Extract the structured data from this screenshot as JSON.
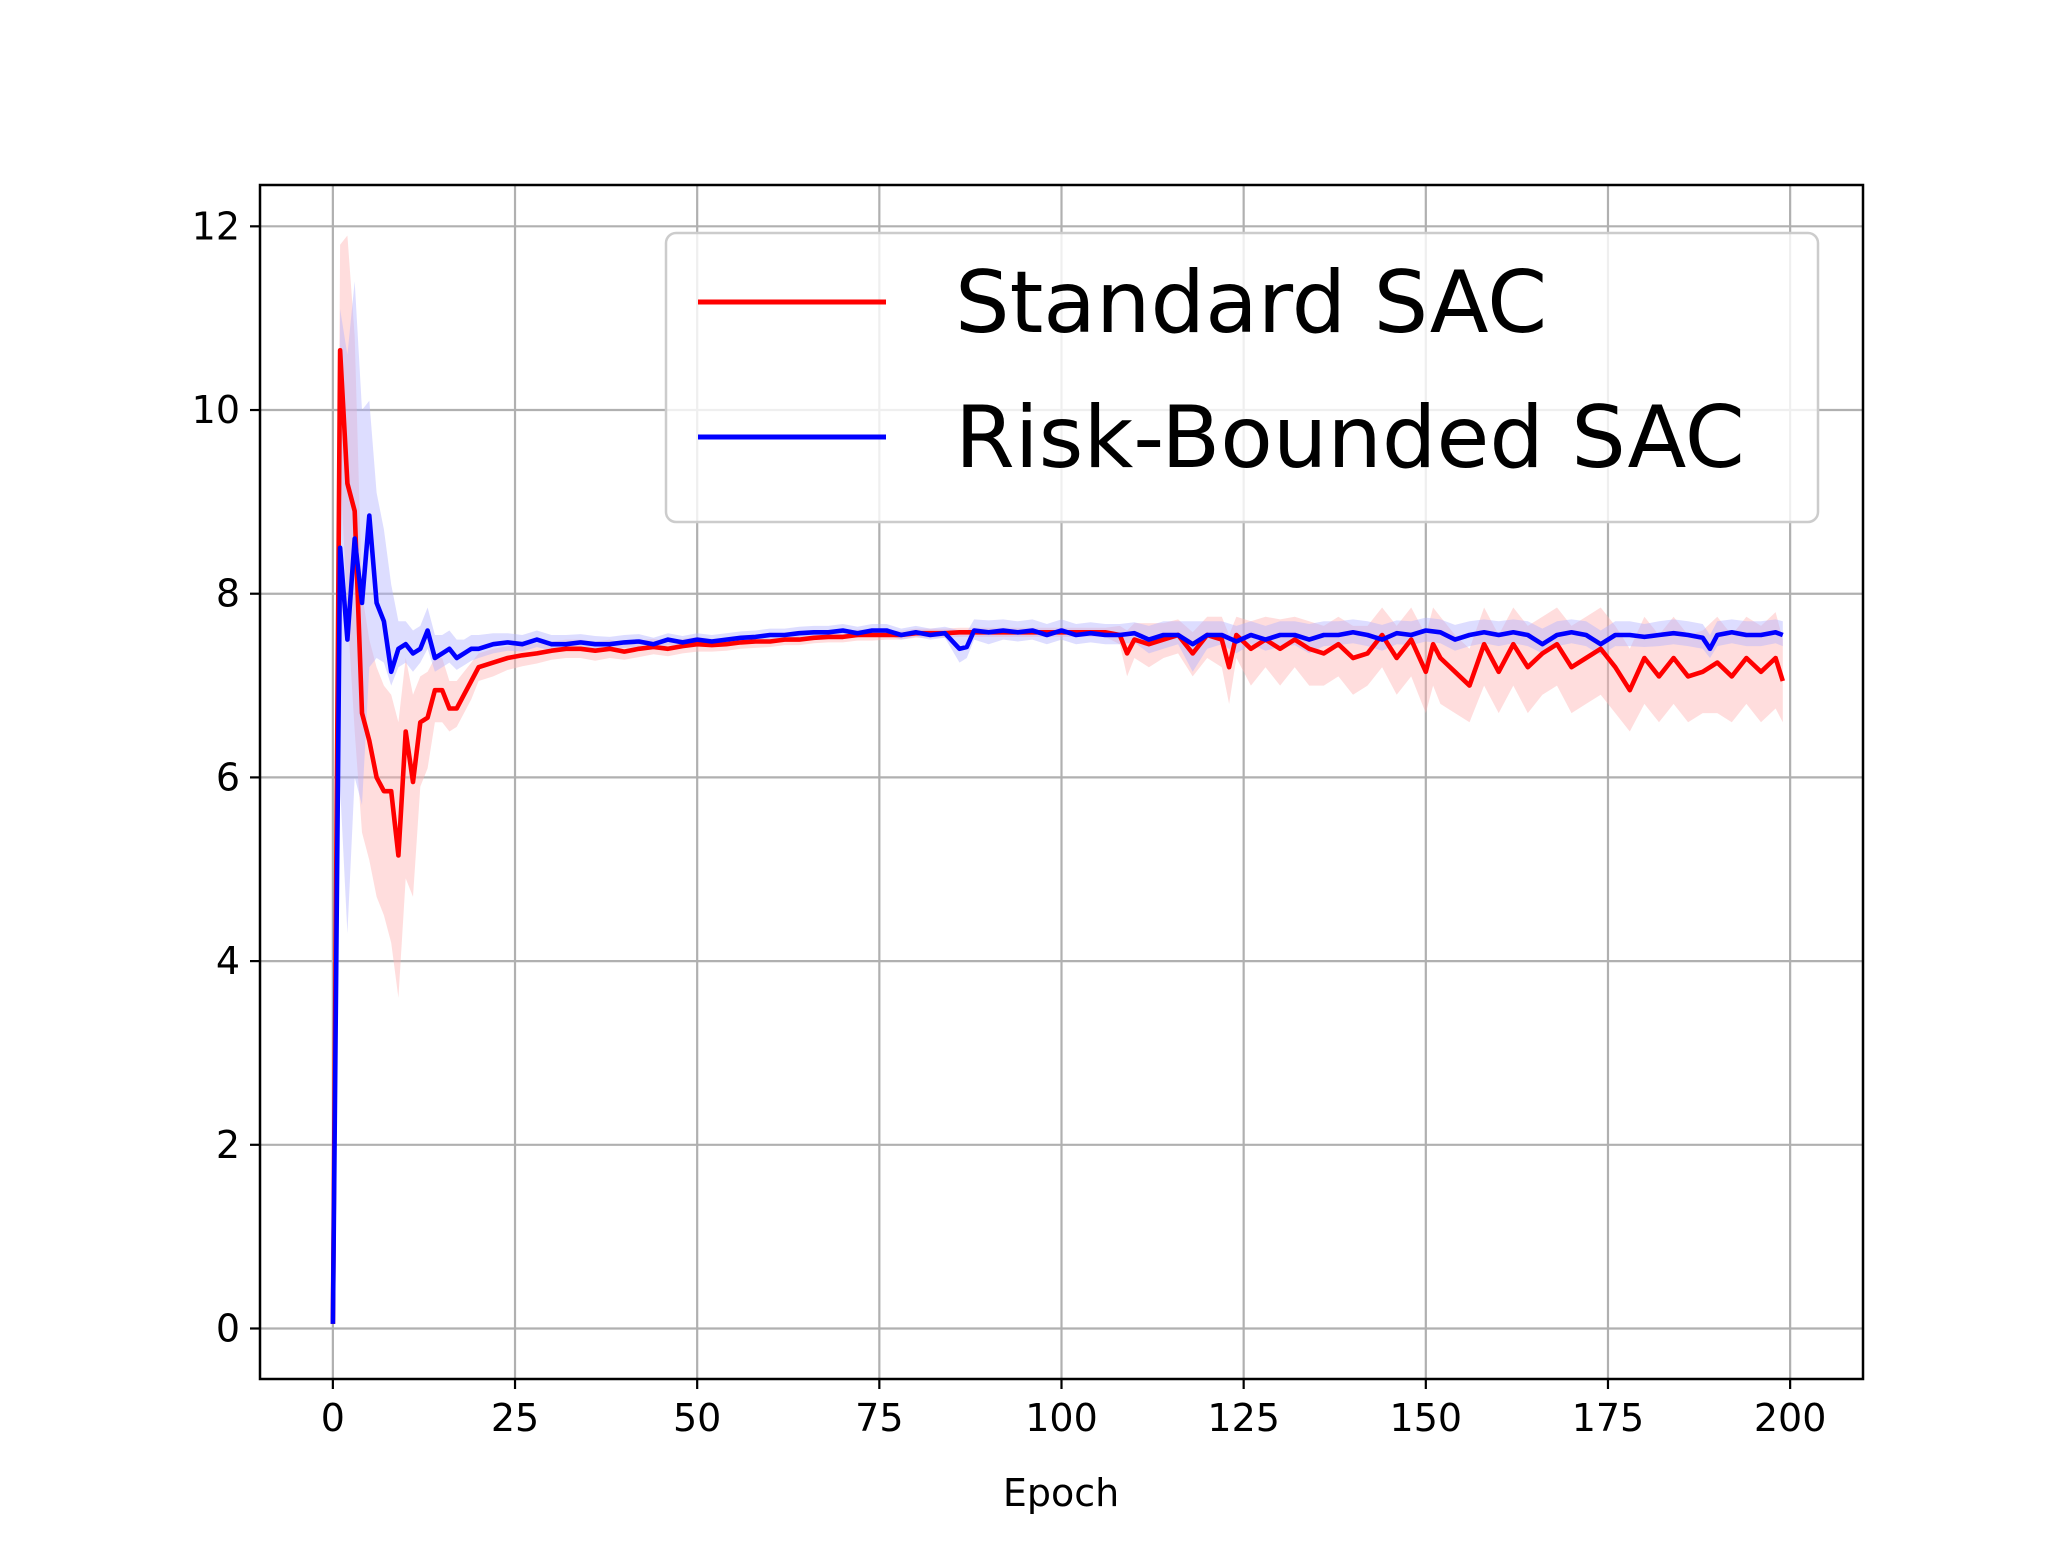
{
  "chart_data": {
    "type": "line",
    "title": "",
    "xlabel": "Epoch",
    "ylabel": "",
    "xlim": [
      -10,
      210
    ],
    "ylim": [
      -0.55,
      12.45
    ],
    "xticks": [
      0,
      25,
      50,
      75,
      100,
      125,
      150,
      175,
      200
    ],
    "yticks": [
      0,
      2,
      4,
      6,
      8,
      10,
      12
    ],
    "grid": true,
    "legend_position": "top-right",
    "series": [
      {
        "name": "Standard SAC",
        "color": "#ff0000",
        "band_color": "#ffb3b3",
        "x": [
          0,
          1,
          2,
          3,
          4,
          5,
          6,
          7,
          8,
          9,
          10,
          11,
          12,
          13,
          14,
          15,
          16,
          17,
          18,
          19,
          20,
          22,
          24,
          26,
          28,
          30,
          32,
          34,
          36,
          38,
          40,
          42,
          44,
          46,
          48,
          50,
          52,
          54,
          56,
          58,
          60,
          62,
          64,
          66,
          68,
          70,
          72,
          74,
          76,
          78,
          80,
          82,
          84,
          86,
          88,
          90,
          92,
          94,
          96,
          98,
          100,
          102,
          104,
          106,
          108,
          109,
          110,
          112,
          114,
          116,
          118,
          120,
          122,
          123,
          124,
          126,
          128,
          130,
          132,
          134,
          136,
          138,
          140,
          142,
          144,
          146,
          148,
          150,
          151,
          152,
          154,
          156,
          158,
          160,
          162,
          164,
          166,
          168,
          170,
          172,
          174,
          176,
          178,
          180,
          182,
          184,
          186,
          188,
          190,
          192,
          194,
          196,
          198,
          199
        ],
        "values": [
          0.05,
          10.65,
          9.2,
          8.9,
          6.7,
          6.4,
          6.0,
          5.85,
          5.85,
          5.15,
          6.5,
          5.95,
          6.6,
          6.65,
          6.95,
          6.95,
          6.75,
          6.75,
          6.9,
          7.05,
          7.2,
          7.25,
          7.3,
          7.33,
          7.35,
          7.38,
          7.4,
          7.4,
          7.38,
          7.4,
          7.37,
          7.4,
          7.42,
          7.4,
          7.43,
          7.45,
          7.44,
          7.45,
          7.47,
          7.48,
          7.48,
          7.5,
          7.5,
          7.52,
          7.53,
          7.53,
          7.55,
          7.55,
          7.55,
          7.55,
          7.57,
          7.57,
          7.57,
          7.58,
          7.58,
          7.58,
          7.58,
          7.58,
          7.58,
          7.58,
          7.58,
          7.58,
          7.58,
          7.58,
          7.55,
          7.35,
          7.5,
          7.45,
          7.5,
          7.55,
          7.35,
          7.55,
          7.5,
          7.2,
          7.55,
          7.4,
          7.5,
          7.4,
          7.5,
          7.4,
          7.35,
          7.45,
          7.3,
          7.35,
          7.55,
          7.3,
          7.5,
          7.15,
          7.45,
          7.3,
          7.15,
          7.0,
          7.45,
          7.15,
          7.45,
          7.2,
          7.35,
          7.45,
          7.2,
          7.3,
          7.4,
          7.2,
          6.95,
          7.3,
          7.1,
          7.3,
          7.1,
          7.15,
          7.25,
          7.1,
          7.3,
          7.15,
          7.3,
          7.05
        ],
        "band_lower": [
          0.0,
          9.4,
          7.8,
          6.5,
          5.4,
          5.1,
          4.7,
          4.5,
          4.2,
          3.6,
          4.9,
          4.7,
          5.9,
          6.1,
          6.6,
          6.6,
          6.5,
          6.55,
          6.7,
          6.85,
          7.05,
          7.1,
          7.17,
          7.21,
          7.24,
          7.28,
          7.3,
          7.3,
          7.27,
          7.3,
          7.28,
          7.31,
          7.34,
          7.32,
          7.35,
          7.37,
          7.37,
          7.38,
          7.4,
          7.41,
          7.42,
          7.44,
          7.44,
          7.46,
          7.47,
          7.47,
          7.49,
          7.49,
          7.5,
          7.5,
          7.52,
          7.52,
          7.52,
          7.53,
          7.53,
          7.53,
          7.53,
          7.53,
          7.53,
          7.53,
          7.53,
          7.53,
          7.53,
          7.53,
          7.45,
          7.1,
          7.3,
          7.2,
          7.3,
          7.35,
          7.1,
          7.3,
          7.2,
          6.8,
          7.3,
          7.0,
          7.2,
          7.0,
          7.2,
          7.0,
          7.0,
          7.1,
          6.9,
          7.0,
          7.2,
          6.9,
          7.1,
          6.7,
          7.0,
          6.8,
          6.7,
          6.6,
          7.0,
          6.7,
          7.0,
          6.7,
          6.9,
          7.0,
          6.7,
          6.8,
          6.9,
          6.7,
          6.5,
          6.8,
          6.6,
          6.8,
          6.6,
          6.7,
          6.7,
          6.6,
          6.8,
          6.6,
          6.75,
          6.6
        ],
        "band_upper": [
          0.1,
          11.8,
          11.9,
          10.8,
          8.0,
          7.5,
          7.2,
          7.0,
          6.9,
          6.6,
          7.3,
          6.9,
          7.1,
          7.15,
          7.3,
          7.3,
          7.05,
          7.05,
          7.15,
          7.25,
          7.35,
          7.4,
          7.43,
          7.45,
          7.46,
          7.48,
          7.5,
          7.5,
          7.48,
          7.5,
          7.46,
          7.49,
          7.51,
          7.48,
          7.51,
          7.53,
          7.51,
          7.52,
          7.54,
          7.55,
          7.54,
          7.56,
          7.56,
          7.58,
          7.59,
          7.59,
          7.61,
          7.61,
          7.6,
          7.6,
          7.62,
          7.62,
          7.62,
          7.63,
          7.63,
          7.63,
          7.63,
          7.63,
          7.63,
          7.63,
          7.63,
          7.63,
          7.63,
          7.63,
          7.65,
          7.6,
          7.68,
          7.68,
          7.68,
          7.72,
          7.58,
          7.75,
          7.75,
          7.55,
          7.75,
          7.7,
          7.75,
          7.72,
          7.75,
          7.7,
          7.65,
          7.75,
          7.65,
          7.65,
          7.85,
          7.65,
          7.85,
          7.55,
          7.85,
          7.75,
          7.55,
          7.4,
          7.85,
          7.55,
          7.85,
          7.65,
          7.75,
          7.85,
          7.65,
          7.75,
          7.85,
          7.65,
          7.4,
          7.75,
          7.55,
          7.75,
          7.55,
          7.6,
          7.75,
          7.55,
          7.75,
          7.65,
          7.8,
          7.5
        ]
      },
      {
        "name": "Risk-Bounded SAC",
        "color": "#0000ff",
        "band_color": "#b3b3ff",
        "x": [
          0,
          1,
          2,
          3,
          4,
          5,
          6,
          7,
          8,
          9,
          10,
          11,
          12,
          13,
          14,
          15,
          16,
          17,
          18,
          19,
          20,
          22,
          24,
          26,
          28,
          30,
          32,
          34,
          36,
          38,
          40,
          42,
          44,
          46,
          48,
          50,
          52,
          54,
          56,
          58,
          60,
          62,
          64,
          66,
          68,
          70,
          72,
          74,
          76,
          78,
          80,
          82,
          84,
          86,
          87,
          88,
          90,
          92,
          94,
          96,
          98,
          100,
          102,
          104,
          106,
          108,
          110,
          112,
          114,
          116,
          118,
          120,
          122,
          124,
          126,
          128,
          130,
          132,
          134,
          136,
          138,
          140,
          142,
          144,
          146,
          148,
          150,
          152,
          154,
          156,
          158,
          160,
          162,
          164,
          166,
          168,
          170,
          172,
          174,
          176,
          178,
          180,
          182,
          184,
          186,
          188,
          189,
          190,
          192,
          194,
          196,
          198,
          199
        ],
        "values": [
          0.05,
          8.5,
          7.5,
          8.6,
          7.9,
          8.85,
          7.9,
          7.7,
          7.15,
          7.4,
          7.45,
          7.35,
          7.4,
          7.6,
          7.3,
          7.35,
          7.4,
          7.3,
          7.35,
          7.4,
          7.4,
          7.45,
          7.47,
          7.45,
          7.5,
          7.45,
          7.45,
          7.47,
          7.45,
          7.45,
          7.47,
          7.48,
          7.45,
          7.5,
          7.47,
          7.5,
          7.48,
          7.5,
          7.52,
          7.53,
          7.55,
          7.55,
          7.57,
          7.58,
          7.58,
          7.6,
          7.57,
          7.6,
          7.6,
          7.55,
          7.58,
          7.55,
          7.57,
          7.4,
          7.42,
          7.6,
          7.58,
          7.6,
          7.58,
          7.6,
          7.55,
          7.6,
          7.55,
          7.57,
          7.55,
          7.55,
          7.57,
          7.5,
          7.55,
          7.55,
          7.45,
          7.55,
          7.55,
          7.48,
          7.55,
          7.5,
          7.55,
          7.55,
          7.5,
          7.55,
          7.55,
          7.58,
          7.55,
          7.5,
          7.57,
          7.55,
          7.6,
          7.58,
          7.5,
          7.55,
          7.58,
          7.55,
          7.58,
          7.55,
          7.45,
          7.55,
          7.58,
          7.55,
          7.45,
          7.55,
          7.55,
          7.53,
          7.55,
          7.57,
          7.55,
          7.52,
          7.4,
          7.55,
          7.58,
          7.55,
          7.55,
          7.58,
          7.55
        ],
        "band_lower": [
          0.0,
          5.9,
          4.3,
          6.0,
          5.7,
          7.2,
          7.3,
          7.25,
          7.0,
          7.2,
          7.25,
          7.15,
          7.25,
          7.4,
          7.15,
          7.2,
          7.25,
          7.17,
          7.22,
          7.27,
          7.3,
          7.35,
          7.38,
          7.37,
          7.42,
          7.38,
          7.38,
          7.4,
          7.38,
          7.39,
          7.41,
          7.42,
          7.4,
          7.44,
          7.42,
          7.45,
          7.43,
          7.45,
          7.47,
          7.48,
          7.5,
          7.5,
          7.52,
          7.53,
          7.53,
          7.55,
          7.52,
          7.55,
          7.55,
          7.5,
          7.53,
          7.5,
          7.52,
          7.25,
          7.3,
          7.5,
          7.45,
          7.5,
          7.48,
          7.5,
          7.45,
          7.5,
          7.45,
          7.47,
          7.45,
          7.45,
          7.47,
          7.35,
          7.4,
          7.45,
          7.15,
          7.4,
          7.45,
          7.35,
          7.45,
          7.38,
          7.42,
          7.44,
          7.35,
          7.43,
          7.44,
          7.46,
          7.43,
          7.38,
          7.45,
          7.44,
          7.48,
          7.46,
          7.38,
          7.43,
          7.46,
          7.43,
          7.46,
          7.43,
          7.35,
          7.43,
          7.46,
          7.43,
          7.33,
          7.43,
          7.43,
          7.42,
          7.43,
          7.45,
          7.43,
          7.4,
          7.3,
          7.43,
          7.46,
          7.43,
          7.43,
          7.46,
          7.43
        ],
        "band_upper": [
          0.1,
          11.1,
          10.6,
          11.4,
          10.0,
          10.1,
          9.1,
          8.7,
          8.1,
          7.7,
          7.7,
          7.6,
          7.65,
          7.85,
          7.55,
          7.55,
          7.6,
          7.5,
          7.5,
          7.55,
          7.55,
          7.57,
          7.57,
          7.55,
          7.6,
          7.55,
          7.55,
          7.56,
          7.54,
          7.53,
          7.55,
          7.56,
          7.52,
          7.57,
          7.54,
          7.57,
          7.55,
          7.57,
          7.59,
          7.6,
          7.62,
          7.62,
          7.64,
          7.65,
          7.65,
          7.67,
          7.64,
          7.67,
          7.67,
          7.62,
          7.65,
          7.62,
          7.64,
          7.6,
          7.58,
          7.72,
          7.71,
          7.72,
          7.7,
          7.72,
          7.67,
          7.72,
          7.67,
          7.69,
          7.67,
          7.67,
          7.69,
          7.65,
          7.7,
          7.7,
          7.7,
          7.7,
          7.7,
          7.65,
          7.7,
          7.65,
          7.7,
          7.7,
          7.67,
          7.7,
          7.7,
          7.72,
          7.7,
          7.66,
          7.71,
          7.7,
          7.74,
          7.72,
          7.66,
          7.7,
          7.72,
          7.7,
          7.72,
          7.7,
          7.62,
          7.7,
          7.72,
          7.7,
          7.6,
          7.7,
          7.7,
          7.67,
          7.7,
          7.72,
          7.7,
          7.67,
          7.55,
          7.7,
          7.72,
          7.7,
          7.7,
          7.72,
          7.7
        ]
      }
    ]
  }
}
